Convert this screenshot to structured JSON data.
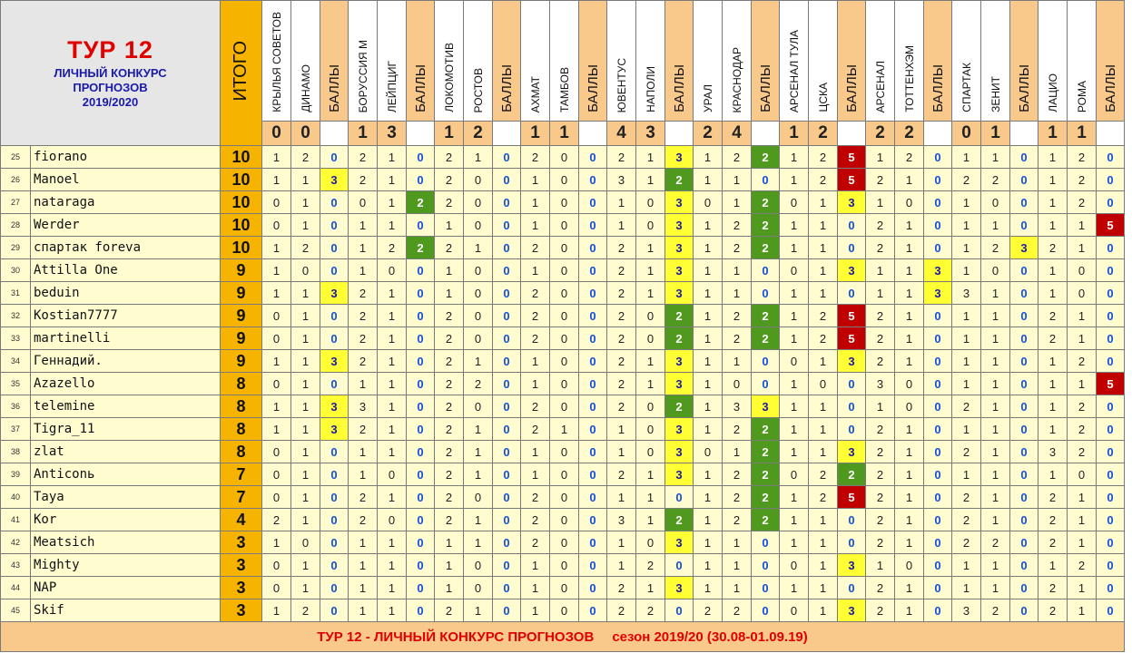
{
  "title": {
    "line1": "ТУР  12",
    "line2": "ЛИЧНЫЙ  КОНКУРС",
    "line3": "ПРОГНОЗОВ",
    "line4": "2019/2020"
  },
  "total_label": "ИТОГО",
  "points_label": "БАЛЛЫ",
  "matches": [
    {
      "home": "КРЫЛЬЯ СОВЕТОВ",
      "away": "ДИНАМО",
      "hs": "0",
      "as": "0"
    },
    {
      "home": "БОРУССИЯ М",
      "away": "ЛЕЙПЦИГ",
      "hs": "1",
      "as": "3"
    },
    {
      "home": "ЛОКОМОТИВ",
      "away": "РОСТОВ",
      "hs": "1",
      "as": "2"
    },
    {
      "home": "АХМАТ",
      "away": "ТАМБОВ",
      "hs": "1",
      "as": "1"
    },
    {
      "home": "ЮВЕНТУС",
      "away": "НАПОЛИ",
      "hs": "4",
      "as": "3"
    },
    {
      "home": "УРАЛ",
      "away": "КРАСНОДАР",
      "hs": "2",
      "as": "4"
    },
    {
      "home": "АРСЕНАЛ ТУЛА",
      "away": "ЦСКА",
      "hs": "1",
      "as": "2"
    },
    {
      "home": "АРСЕНАЛ",
      "away": "ТОТТЕНХЭМ",
      "hs": "2",
      "as": "2"
    },
    {
      "home": "СПАРТАК",
      "away": "ЗЕНИТ",
      "hs": "0",
      "as": "1"
    },
    {
      "home": "ЛАЦИО",
      "away": "РОМА",
      "hs": "1",
      "as": "1"
    }
  ],
  "rows": [
    {
      "n": "25",
      "name": "fiorano",
      "total": "10",
      "p": [
        [
          "1",
          "2",
          "0"
        ],
        [
          "2",
          "1",
          "0"
        ],
        [
          "2",
          "1",
          "0"
        ],
        [
          "2",
          "0",
          "0"
        ],
        [
          "2",
          "1",
          "3"
        ],
        [
          "1",
          "2",
          "2"
        ],
        [
          "1",
          "2",
          "5"
        ],
        [
          "1",
          "2",
          "0"
        ],
        [
          "1",
          "1",
          "0"
        ],
        [
          "1",
          "2",
          "0"
        ]
      ]
    },
    {
      "n": "26",
      "name": "Manoel",
      "total": "10",
      "p": [
        [
          "1",
          "1",
          "3"
        ],
        [
          "2",
          "1",
          "0"
        ],
        [
          "2",
          "0",
          "0"
        ],
        [
          "1",
          "0",
          "0"
        ],
        [
          "3",
          "1",
          "2"
        ],
        [
          "1",
          "1",
          "0"
        ],
        [
          "1",
          "2",
          "5"
        ],
        [
          "2",
          "1",
          "0"
        ],
        [
          "2",
          "2",
          "0"
        ],
        [
          "1",
          "2",
          "0"
        ]
      ]
    },
    {
      "n": "27",
      "name": "nataraga",
      "total": "10",
      "p": [
        [
          "0",
          "1",
          "0"
        ],
        [
          "0",
          "1",
          "2"
        ],
        [
          "2",
          "0",
          "0"
        ],
        [
          "1",
          "0",
          "0"
        ],
        [
          "1",
          "0",
          "3"
        ],
        [
          "0",
          "1",
          "2"
        ],
        [
          "0",
          "1",
          "3"
        ],
        [
          "1",
          "0",
          "0"
        ],
        [
          "1",
          "0",
          "0"
        ],
        [
          "1",
          "2",
          "0"
        ]
      ]
    },
    {
      "n": "28",
      "name": "Werder",
      "total": "10",
      "p": [
        [
          "0",
          "1",
          "0"
        ],
        [
          "1",
          "1",
          "0"
        ],
        [
          "1",
          "0",
          "0"
        ],
        [
          "1",
          "0",
          "0"
        ],
        [
          "1",
          "0",
          "3"
        ],
        [
          "1",
          "2",
          "2"
        ],
        [
          "1",
          "1",
          "0"
        ],
        [
          "2",
          "1",
          "0"
        ],
        [
          "1",
          "1",
          "0"
        ],
        [
          "1",
          "1",
          "5"
        ]
      ]
    },
    {
      "n": "29",
      "name": "спартак foreva",
      "total": "10",
      "p": [
        [
          "1",
          "2",
          "0"
        ],
        [
          "1",
          "2",
          "2"
        ],
        [
          "2",
          "1",
          "0"
        ],
        [
          "2",
          "0",
          "0"
        ],
        [
          "2",
          "1",
          "3"
        ],
        [
          "1",
          "2",
          "2"
        ],
        [
          "1",
          "1",
          "0"
        ],
        [
          "2",
          "1",
          "0"
        ],
        [
          "1",
          "2",
          "3"
        ],
        [
          "2",
          "1",
          "0"
        ]
      ]
    },
    {
      "n": "30",
      "name": "Attilla One",
      "total": "9",
      "p": [
        [
          "1",
          "0",
          "0"
        ],
        [
          "1",
          "0",
          "0"
        ],
        [
          "1",
          "0",
          "0"
        ],
        [
          "1",
          "0",
          "0"
        ],
        [
          "2",
          "1",
          "3"
        ],
        [
          "1",
          "1",
          "0"
        ],
        [
          "0",
          "1",
          "3"
        ],
        [
          "1",
          "1",
          "3"
        ],
        [
          "1",
          "0",
          "0"
        ],
        [
          "1",
          "0",
          "0"
        ]
      ]
    },
    {
      "n": "31",
      "name": "beduin",
      "total": "9",
      "p": [
        [
          "1",
          "1",
          "3"
        ],
        [
          "2",
          "1",
          "0"
        ],
        [
          "1",
          "0",
          "0"
        ],
        [
          "2",
          "0",
          "0"
        ],
        [
          "2",
          "1",
          "3"
        ],
        [
          "1",
          "1",
          "0"
        ],
        [
          "1",
          "1",
          "0"
        ],
        [
          "1",
          "1",
          "3"
        ],
        [
          "3",
          "1",
          "0"
        ],
        [
          "1",
          "0",
          "0"
        ]
      ]
    },
    {
      "n": "32",
      "name": "Kostian7777",
      "total": "9",
      "p": [
        [
          "0",
          "1",
          "0"
        ],
        [
          "2",
          "1",
          "0"
        ],
        [
          "2",
          "0",
          "0"
        ],
        [
          "2",
          "0",
          "0"
        ],
        [
          "2",
          "0",
          "2"
        ],
        [
          "1",
          "2",
          "2"
        ],
        [
          "1",
          "2",
          "5"
        ],
        [
          "2",
          "1",
          "0"
        ],
        [
          "1",
          "1",
          "0"
        ],
        [
          "2",
          "1",
          "0"
        ]
      ]
    },
    {
      "n": "33",
      "name": "martinelli",
      "total": "9",
      "p": [
        [
          "0",
          "1",
          "0"
        ],
        [
          "2",
          "1",
          "0"
        ],
        [
          "2",
          "0",
          "0"
        ],
        [
          "2",
          "0",
          "0"
        ],
        [
          "2",
          "0",
          "2"
        ],
        [
          "1",
          "2",
          "2"
        ],
        [
          "1",
          "2",
          "5"
        ],
        [
          "2",
          "1",
          "0"
        ],
        [
          "1",
          "1",
          "0"
        ],
        [
          "2",
          "1",
          "0"
        ]
      ]
    },
    {
      "n": "34",
      "name": "Геннадий.",
      "total": "9",
      "p": [
        [
          "1",
          "1",
          "3"
        ],
        [
          "2",
          "1",
          "0"
        ],
        [
          "2",
          "1",
          "0"
        ],
        [
          "1",
          "0",
          "0"
        ],
        [
          "2",
          "1",
          "3"
        ],
        [
          "1",
          "1",
          "0"
        ],
        [
          "0",
          "1",
          "3"
        ],
        [
          "2",
          "1",
          "0"
        ],
        [
          "1",
          "1",
          "0"
        ],
        [
          "1",
          "2",
          "0"
        ]
      ]
    },
    {
      "n": "35",
      "name": "Azazello",
      "total": "8",
      "p": [
        [
          "0",
          "1",
          "0"
        ],
        [
          "1",
          "1",
          "0"
        ],
        [
          "2",
          "2",
          "0"
        ],
        [
          "1",
          "0",
          "0"
        ],
        [
          "2",
          "1",
          "3"
        ],
        [
          "1",
          "0",
          "0"
        ],
        [
          "1",
          "0",
          "0"
        ],
        [
          "3",
          "0",
          "0"
        ],
        [
          "1",
          "1",
          "0"
        ],
        [
          "1",
          "1",
          "5"
        ]
      ]
    },
    {
      "n": "36",
      "name": "telemine",
      "total": "8",
      "p": [
        [
          "1",
          "1",
          "3"
        ],
        [
          "3",
          "1",
          "0"
        ],
        [
          "2",
          "0",
          "0"
        ],
        [
          "2",
          "0",
          "0"
        ],
        [
          "2",
          "0",
          "2"
        ],
        [
          "1",
          "3",
          "3"
        ],
        [
          "1",
          "1",
          "0"
        ],
        [
          "1",
          "0",
          "0"
        ],
        [
          "2",
          "1",
          "0"
        ],
        [
          "1",
          "2",
          "0"
        ]
      ]
    },
    {
      "n": "37",
      "name": "Tigra_11",
      "total": "8",
      "p": [
        [
          "1",
          "1",
          "3"
        ],
        [
          "2",
          "1",
          "0"
        ],
        [
          "2",
          "1",
          "0"
        ],
        [
          "2",
          "1",
          "0"
        ],
        [
          "1",
          "0",
          "3"
        ],
        [
          "1",
          "2",
          "2"
        ],
        [
          "1",
          "1",
          "0"
        ],
        [
          "2",
          "1",
          "0"
        ],
        [
          "1",
          "1",
          "0"
        ],
        [
          "1",
          "2",
          "0"
        ]
      ]
    },
    {
      "n": "38",
      "name": "zlat",
      "total": "8",
      "p": [
        [
          "0",
          "1",
          "0"
        ],
        [
          "1",
          "1",
          "0"
        ],
        [
          "2",
          "1",
          "0"
        ],
        [
          "1",
          "0",
          "0"
        ],
        [
          "1",
          "0",
          "3"
        ],
        [
          "0",
          "1",
          "2"
        ],
        [
          "1",
          "1",
          "3"
        ],
        [
          "2",
          "1",
          "0"
        ],
        [
          "2",
          "1",
          "0"
        ],
        [
          "3",
          "2",
          "0"
        ]
      ]
    },
    {
      "n": "39",
      "name": "Anticonь",
      "total": "7",
      "p": [
        [
          "0",
          "1",
          "0"
        ],
        [
          "1",
          "0",
          "0"
        ],
        [
          "2",
          "1",
          "0"
        ],
        [
          "1",
          "0",
          "0"
        ],
        [
          "2",
          "1",
          "3"
        ],
        [
          "1",
          "2",
          "2"
        ],
        [
          "0",
          "2",
          "2"
        ],
        [
          "2",
          "1",
          "0"
        ],
        [
          "1",
          "1",
          "0"
        ],
        [
          "1",
          "0",
          "0"
        ]
      ]
    },
    {
      "n": "40",
      "name": "Taya",
      "total": "7",
      "p": [
        [
          "0",
          "1",
          "0"
        ],
        [
          "2",
          "1",
          "0"
        ],
        [
          "2",
          "0",
          "0"
        ],
        [
          "2",
          "0",
          "0"
        ],
        [
          "1",
          "1",
          "0"
        ],
        [
          "1",
          "2",
          "2"
        ],
        [
          "1",
          "2",
          "5"
        ],
        [
          "2",
          "1",
          "0"
        ],
        [
          "2",
          "1",
          "0"
        ],
        [
          "2",
          "1",
          "0"
        ]
      ]
    },
    {
      "n": "41",
      "name": "Kor",
      "total": "4",
      "p": [
        [
          "2",
          "1",
          "0"
        ],
        [
          "2",
          "0",
          "0"
        ],
        [
          "2",
          "1",
          "0"
        ],
        [
          "2",
          "0",
          "0"
        ],
        [
          "3",
          "1",
          "2"
        ],
        [
          "1",
          "2",
          "2"
        ],
        [
          "1",
          "1",
          "0"
        ],
        [
          "2",
          "1",
          "0"
        ],
        [
          "2",
          "1",
          "0"
        ],
        [
          "2",
          "1",
          "0"
        ]
      ]
    },
    {
      "n": "42",
      "name": "Meatsich",
      "total": "3",
      "p": [
        [
          "1",
          "0",
          "0"
        ],
        [
          "1",
          "1",
          "0"
        ],
        [
          "1",
          "1",
          "0"
        ],
        [
          "2",
          "0",
          "0"
        ],
        [
          "1",
          "0",
          "3"
        ],
        [
          "1",
          "1",
          "0"
        ],
        [
          "1",
          "1",
          "0"
        ],
        [
          "2",
          "1",
          "0"
        ],
        [
          "2",
          "2",
          "0"
        ],
        [
          "2",
          "1",
          "0"
        ]
      ]
    },
    {
      "n": "43",
      "name": "Mighty",
      "total": "3",
      "p": [
        [
          "0",
          "1",
          "0"
        ],
        [
          "1",
          "1",
          "0"
        ],
        [
          "1",
          "0",
          "0"
        ],
        [
          "1",
          "0",
          "0"
        ],
        [
          "1",
          "2",
          "0"
        ],
        [
          "1",
          "1",
          "0"
        ],
        [
          "0",
          "1",
          "3"
        ],
        [
          "1",
          "0",
          "0"
        ],
        [
          "1",
          "1",
          "0"
        ],
        [
          "1",
          "2",
          "0"
        ]
      ]
    },
    {
      "n": "44",
      "name": "NAP",
      "total": "3",
      "p": [
        [
          "0",
          "1",
          "0"
        ],
        [
          "1",
          "1",
          "0"
        ],
        [
          "1",
          "0",
          "0"
        ],
        [
          "1",
          "0",
          "0"
        ],
        [
          "2",
          "1",
          "3"
        ],
        [
          "1",
          "1",
          "0"
        ],
        [
          "1",
          "1",
          "0"
        ],
        [
          "2",
          "1",
          "0"
        ],
        [
          "1",
          "1",
          "0"
        ],
        [
          "2",
          "1",
          "0"
        ]
      ]
    },
    {
      "n": "45",
      "name": "Skif",
      "total": "3",
      "p": [
        [
          "1",
          "2",
          "0"
        ],
        [
          "1",
          "1",
          "0"
        ],
        [
          "2",
          "1",
          "0"
        ],
        [
          "1",
          "0",
          "0"
        ],
        [
          "2",
          "2",
          "0"
        ],
        [
          "2",
          "2",
          "0"
        ],
        [
          "0",
          "1",
          "3"
        ],
        [
          "2",
          "1",
          "0"
        ],
        [
          "3",
          "2",
          "0"
        ],
        [
          "2",
          "1",
          "0"
        ]
      ]
    }
  ],
  "footer": {
    "left": "ТУР 12 - ЛИЧНЫЙ КОНКУРС ПРОГНОЗОВ",
    "right": "сезон 2019/20  (30.08-01.09.19)"
  },
  "colors": {
    "zero": "#1450d8",
    "points_2": "#4f9a1e",
    "points_3": "#ffff33",
    "points_5": "#c00000"
  }
}
